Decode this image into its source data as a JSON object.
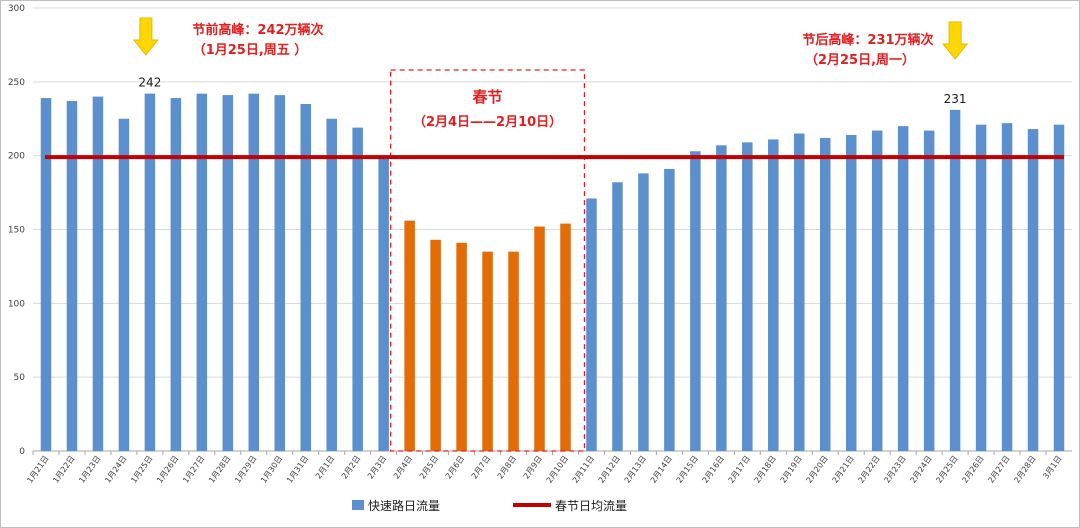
{
  "chart_data": {
    "type": "bar",
    "ylim": [
      0,
      300
    ],
    "yticks": [
      0,
      50,
      100,
      150,
      200,
      250,
      300
    ],
    "categories": [
      "1月21日",
      "1月22日",
      "1月23日",
      "1月24日",
      "1月25日",
      "1月26日",
      "1月27日",
      "1月28日",
      "1月29日",
      "1月30日",
      "1月31日",
      "2月1日",
      "2月2日",
      "2月3日",
      "2月4日",
      "2月5日",
      "2月6日",
      "2月7日",
      "2月8日",
      "2月9日",
      "2月10日",
      "2月11日",
      "2月12日",
      "2月13日",
      "2月14日",
      "2月15日",
      "2月16日",
      "2月17日",
      "2月18日",
      "2月19日",
      "2月20日",
      "2月21日",
      "2月22日",
      "2月23日",
      "2月24日",
      "2月25日",
      "2月26日",
      "2月27日",
      "2月28日",
      "3月1日"
    ],
    "series": [
      {
        "name": "快速路日流量",
        "values": [
          239,
          237,
          240,
          225,
          242,
          239,
          242,
          241,
          242,
          241,
          235,
          225,
          219,
          199,
          156,
          143,
          141,
          135,
          135,
          152,
          154,
          171,
          182,
          188,
          191,
          203,
          207,
          209,
          211,
          215,
          212,
          214,
          217,
          220,
          217,
          231,
          221,
          222,
          218,
          221
        ],
        "color": "#5b8fcd",
        "holiday_color": "#e36c09"
      },
      {
        "name": "春节日均流量",
        "value": 199,
        "color": "#c00000"
      }
    ],
    "holiday_range": [
      "2月4日",
      "2月10日"
    ],
    "holiday_label": "春节",
    "holiday_sub": "（2月4日——2月10日）",
    "peak_labels": [
      {
        "category": "1月25日",
        "text": "242"
      },
      {
        "category": "2月25日",
        "text": "231"
      }
    ],
    "annotations": [
      {
        "line1": "节前高峰：242万辆次",
        "line2": "（1月25日,周五 ）"
      },
      {
        "line1": "节后高峰：231万辆次",
        "line2": "（2月25日,周一）"
      }
    ],
    "legend": [
      "快速路日流量",
      "春节日均流量"
    ],
    "grid": true,
    "legend_position": "bottom"
  }
}
